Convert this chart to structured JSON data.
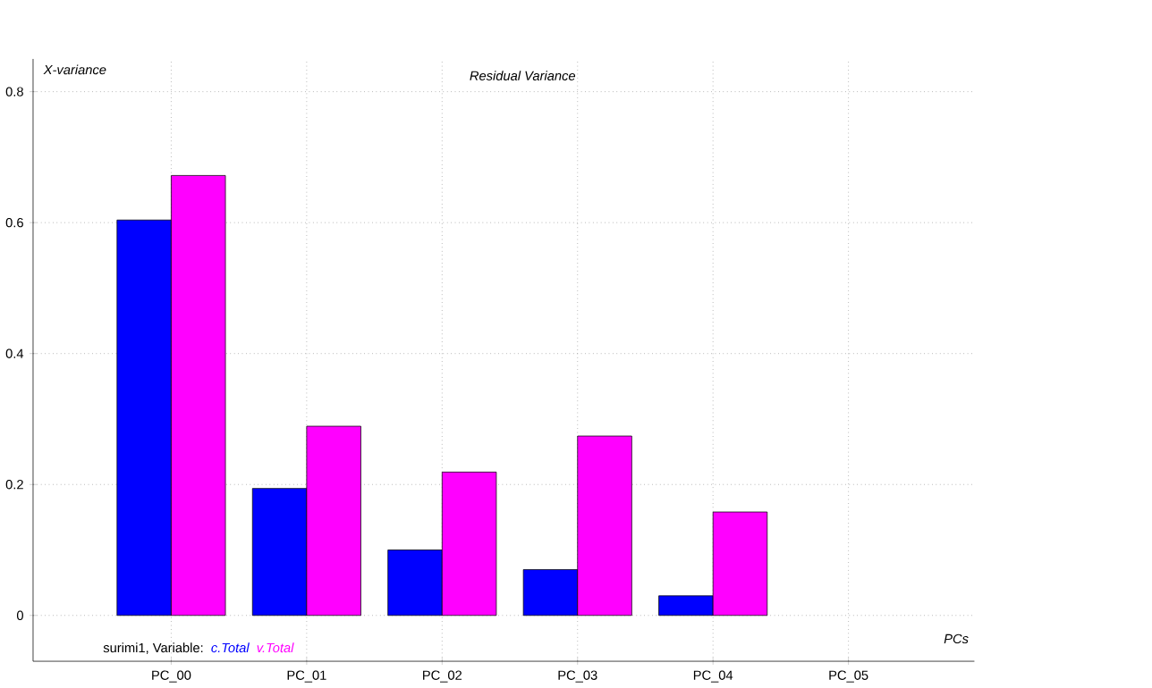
{
  "chart_data": {
    "type": "bar",
    "title": "Residual Variance",
    "ylabel": "X-variance",
    "xlabel": "PCs",
    "categories": [
      "PC_00",
      "PC_01",
      "PC_02",
      "PC_03",
      "PC_04",
      "PC_05"
    ],
    "series": [
      {
        "name": "c.Total",
        "color": "#0000ff",
        "values": [
          0.604,
          0.194,
          0.1,
          0.07,
          0.03,
          null
        ]
      },
      {
        "name": "v.Total",
        "color": "#ff00ff",
        "values": [
          0.672,
          0.289,
          0.219,
          0.274,
          0.158,
          null
        ]
      }
    ],
    "ylim": [
      -0.07,
      0.85
    ],
    "yticks": [
      0,
      0.2,
      0.4,
      0.6,
      0.8
    ],
    "grid": true,
    "annotations": [
      "surimi1, Variable:"
    ]
  }
}
